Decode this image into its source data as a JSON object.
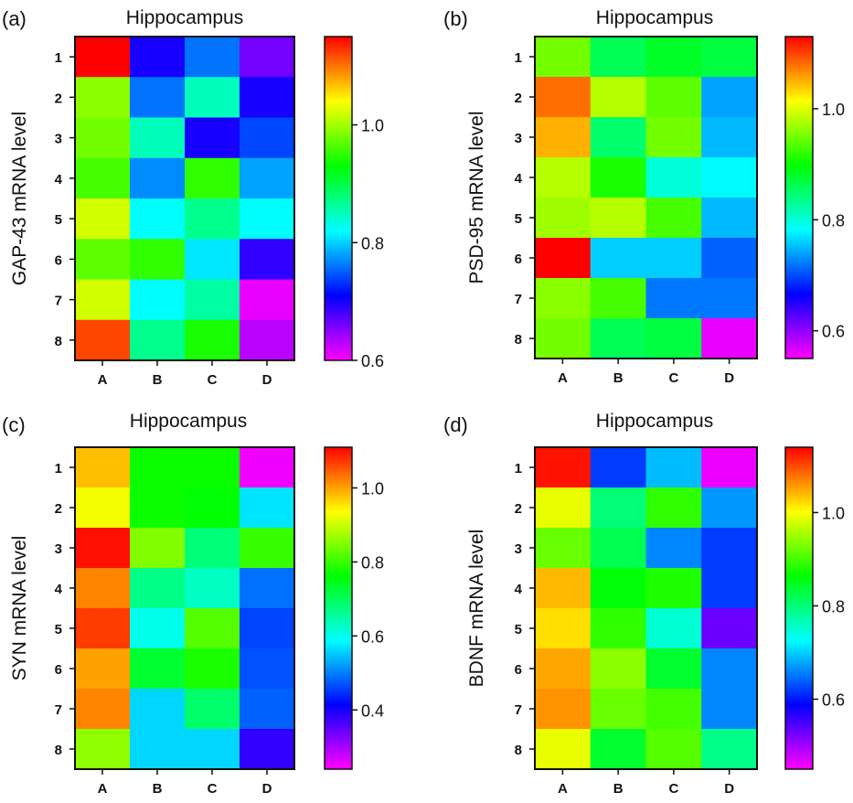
{
  "colormap": {
    "stops": [
      "#ff00ff",
      "#8000ff",
      "#0000ff",
      "#0080ff",
      "#00ffff",
      "#00ff80",
      "#00ff00",
      "#80ff00",
      "#ffff00",
      "#ff8000",
      "#ff0000"
    ]
  },
  "chart_data": [
    {
      "type": "heatmap",
      "panel_label": "(a)",
      "title": "Hippocampus",
      "ylabel": "GAP-43 mRNA level",
      "xlabel": "",
      "columns": [
        "A",
        "B",
        "C",
        "D"
      ],
      "rows": [
        "1",
        "2",
        "3",
        "4",
        "5",
        "6",
        "7",
        "8"
      ],
      "values": [
        [
          1.15,
          0.7,
          0.76,
          0.66
        ],
        [
          0.99,
          0.76,
          0.85,
          0.7
        ],
        [
          0.98,
          0.85,
          0.7,
          0.74
        ],
        [
          0.96,
          0.77,
          0.95,
          0.78
        ],
        [
          1.02,
          0.82,
          0.87,
          0.82
        ],
        [
          0.97,
          0.95,
          0.81,
          0.69
        ],
        [
          1.02,
          0.82,
          0.86,
          0.61
        ],
        [
          1.12,
          0.87,
          0.94,
          0.63
        ]
      ],
      "colorbar": {
        "min": 0.6,
        "max": 1.15,
        "ticks": [
          0.6,
          0.8,
          1.0
        ]
      }
    },
    {
      "type": "heatmap",
      "panel_label": "(b)",
      "title": "Hippocampus",
      "ylabel": "PSD-95 mRNA level",
      "xlabel": "",
      "columns": [
        "A",
        "B",
        "C",
        "D"
      ],
      "rows": [
        "1",
        "2",
        "3",
        "4",
        "5",
        "6",
        "7",
        "8"
      ],
      "values": [
        [
          0.95,
          0.86,
          0.88,
          0.87
        ],
        [
          1.08,
          0.98,
          0.94,
          0.74
        ],
        [
          1.05,
          0.85,
          0.95,
          0.75
        ],
        [
          0.98,
          0.91,
          0.8,
          0.78
        ],
        [
          0.97,
          0.98,
          0.93,
          0.75
        ],
        [
          1.13,
          0.76,
          0.76,
          0.71
        ],
        [
          0.96,
          0.93,
          0.72,
          0.72
        ],
        [
          0.95,
          0.86,
          0.87,
          0.56
        ]
      ],
      "colorbar": {
        "min": 0.55,
        "max": 1.13,
        "ticks": [
          0.6,
          0.8,
          1.0
        ]
      }
    },
    {
      "type": "heatmap",
      "panel_label": "(c)",
      "title": "Hippocampus",
      "ylabel": "SYN mRNA level",
      "xlabel": "",
      "columns": [
        "A",
        "B",
        "C",
        "D"
      ],
      "rows": [
        "1",
        "2",
        "3",
        "4",
        "5",
        "6",
        "7",
        "8"
      ],
      "values": [
        [
          0.98,
          0.77,
          0.77,
          0.25
        ],
        [
          0.93,
          0.77,
          0.76,
          0.57
        ],
        [
          1.1,
          0.85,
          0.68,
          0.8
        ],
        [
          1.02,
          0.67,
          0.63,
          0.49
        ],
        [
          1.07,
          0.6,
          0.82,
          0.46
        ],
        [
          1.0,
          0.73,
          0.78,
          0.47
        ],
        [
          1.02,
          0.56,
          0.69,
          0.48
        ],
        [
          0.86,
          0.56,
          0.56,
          0.38
        ]
      ],
      "colorbar": {
        "min": 0.24,
        "max": 1.11,
        "ticks": [
          0.4,
          0.6,
          0.8,
          1.0
        ]
      }
    },
    {
      "type": "heatmap",
      "panel_label": "(d)",
      "title": "Hippocampus",
      "ylabel": "BDNF mRNA level",
      "xlabel": "",
      "columns": [
        "A",
        "B",
        "C",
        "D"
      ],
      "rows": [
        "1",
        "2",
        "3",
        "4",
        "5",
        "6",
        "7",
        "8"
      ],
      "values": [
        [
          1.13,
          0.62,
          0.69,
          0.46
        ],
        [
          0.99,
          0.8,
          0.89,
          0.67
        ],
        [
          0.92,
          0.82,
          0.66,
          0.62
        ],
        [
          1.04,
          0.86,
          0.88,
          0.62
        ],
        [
          1.02,
          0.89,
          0.75,
          0.53
        ],
        [
          1.05,
          0.94,
          0.84,
          0.66
        ],
        [
          1.06,
          0.92,
          0.9,
          0.66
        ],
        [
          0.99,
          0.84,
          0.91,
          0.79
        ]
      ],
      "colorbar": {
        "min": 0.45,
        "max": 1.14,
        "ticks": [
          0.6,
          0.8,
          1.0
        ]
      }
    }
  ]
}
